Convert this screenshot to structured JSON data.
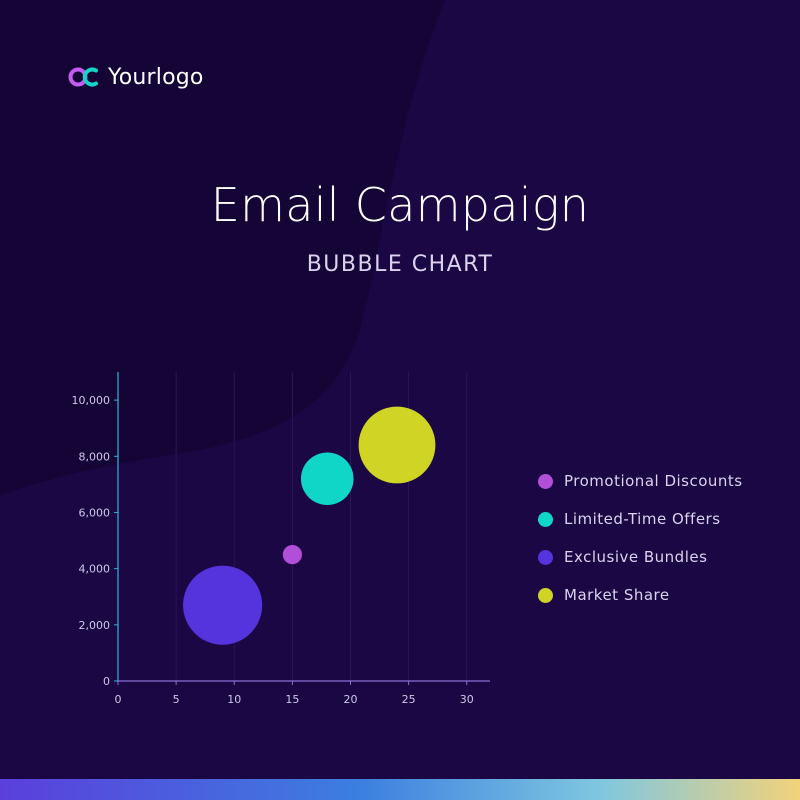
{
  "logo": {
    "text": "Yourlogo",
    "icon": "oc-logo-icon",
    "colors": [
      "#c45df0",
      "#18d4c8"
    ]
  },
  "title": "Email Campaign",
  "subtitle": "BUBBLE CHART",
  "colors": {
    "background": "#1a0743",
    "background_shape": "#150536"
  },
  "chart_data": {
    "type": "scatter",
    "bubble": true,
    "title": "",
    "xlabel": "",
    "ylabel": "",
    "xlim": [
      0,
      32
    ],
    "ylim": [
      0,
      11000
    ],
    "x_ticks": [
      0,
      5,
      10,
      15,
      20,
      25,
      30
    ],
    "y_ticks": [
      0,
      2000,
      4000,
      6000,
      8000,
      10000
    ],
    "x_tick_labels": [
      "0",
      "5",
      "10",
      "15",
      "20",
      "25",
      "30"
    ],
    "y_tick_labels": [
      "0",
      "2,000",
      "4,000",
      "6,000",
      "8,000",
      "10,000"
    ],
    "grid": "vertical",
    "legend_position": "right",
    "series": [
      {
        "name": "Promotional Discounts",
        "color": "#b14fd8",
        "points": [
          {
            "x": 15,
            "y": 4500,
            "size": 1
          }
        ]
      },
      {
        "name": "Limited-Time Offers",
        "color": "#0fd6c6",
        "points": [
          {
            "x": 18,
            "y": 7200,
            "size": 7.5
          }
        ]
      },
      {
        "name": "Exclusive Bundles",
        "color": "#5533dd",
        "points": [
          {
            "x": 9,
            "y": 2700,
            "size": 17
          }
        ]
      },
      {
        "name": "Market Share",
        "color": "#cfd425",
        "points": [
          {
            "x": 24,
            "y": 8400,
            "size": 16
          }
        ]
      }
    ]
  }
}
